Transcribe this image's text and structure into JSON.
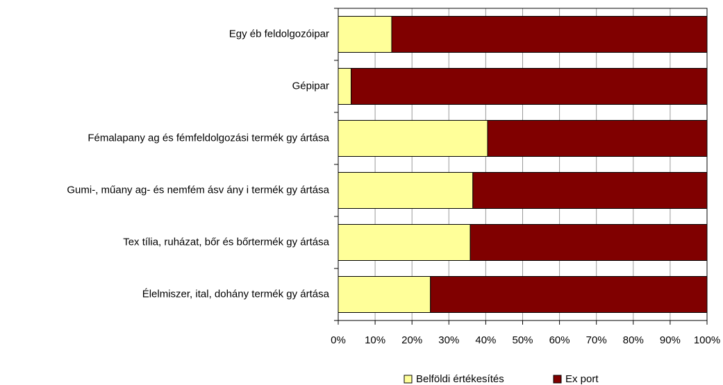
{
  "chart_data": {
    "type": "stacked_bar_horizontal",
    "categories": [
      "Egy éb feldolgozóipar",
      "Gépipar",
      "Fémalapany ag és fémfeldolgozási termék gy ártása",
      "Gumi-, műany ag- és nemfém ásv ány i termék gy ártása",
      "Tex tília, ruházat, bőr és bőrtermék gy ártása",
      "Élelmiszer, ital, dohány termék gy ártása"
    ],
    "series": [
      {
        "name": "Belföldi értékesítés",
        "color": "#ffff99",
        "values": [
          14.5,
          3.5,
          40.5,
          36.5,
          35.8,
          25
        ]
      },
      {
        "name": "Ex port",
        "color": "#800000",
        "values": [
          85.5,
          96.5,
          59.5,
          63.5,
          64.2,
          75
        ]
      }
    ],
    "xlim": [
      0,
      100
    ],
    "xticks": [
      {
        "value": 0,
        "label": "0%"
      },
      {
        "value": 10,
        "label": "10%"
      },
      {
        "value": 20,
        "label": "20%"
      },
      {
        "value": 30,
        "label": "30%"
      },
      {
        "value": 40,
        "label": "40%"
      },
      {
        "value": 50,
        "label": "50%"
      },
      {
        "value": 60,
        "label": "60%"
      },
      {
        "value": 70,
        "label": "70%"
      },
      {
        "value": 80,
        "label": "80%"
      },
      {
        "value": 90,
        "label": "90%"
      },
      {
        "value": 100,
        "label": "100%"
      }
    ],
    "grid": true,
    "legend": "bottom"
  }
}
